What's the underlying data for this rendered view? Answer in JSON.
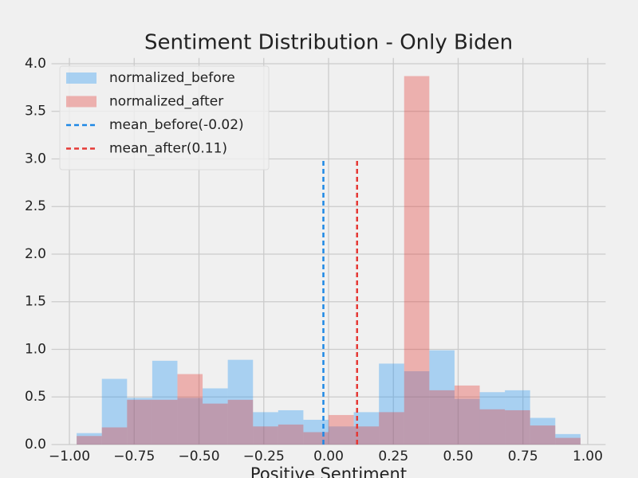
{
  "chart_data": {
    "type": "histogram",
    "title": "Sentiment Distribution - Only Biden",
    "xlabel": "Positive Sentiment",
    "bins": [
      -0.972,
      -0.8748,
      -0.7776,
      -0.6804,
      -0.5832,
      -0.486,
      -0.3888,
      -0.2916,
      -0.1944,
      -0.0972,
      0,
      0.0972,
      0.1944,
      0.2916,
      0.3888,
      0.486,
      0.5832,
      0.6804,
      0.7776,
      0.8748,
      0.972
    ],
    "series": [
      {
        "name": "normalized_before",
        "color": "#2196f3",
        "values": [
          0.12,
          0.69,
          0.49,
          0.88,
          0.49,
          0.59,
          0.89,
          0.34,
          0.36,
          0.26,
          0.19,
          0.34,
          0.85,
          0.77,
          0.99,
          0.48,
          0.55,
          0.57,
          0.28,
          0.11
        ]
      },
      {
        "name": "normalized_after",
        "color": "#e53935",
        "values": [
          0.09,
          0.18,
          0.47,
          0.47,
          0.74,
          0.43,
          0.47,
          0.19,
          0.21,
          0.13,
          0.31,
          0.19,
          0.34,
          3.87,
          0.57,
          0.62,
          0.37,
          0.36,
          0.2,
          0.07
        ]
      }
    ],
    "lines": [
      {
        "name": "mean_before(-0.02)",
        "color": "#1e88e5",
        "x": -0.02,
        "ymin": 0,
        "ymax": 3
      },
      {
        "name": "mean_after(0.11)",
        "color": "#e53935",
        "x": 0.11,
        "ymin": 0,
        "ymax": 3
      }
    ],
    "xlim": [
      -1.069,
      1.069
    ],
    "ylim": [
      0,
      4.06
    ],
    "xticks": [
      {
        "value": -1,
        "label": "−1.00"
      },
      {
        "value": -0.75,
        "label": "−0.75"
      },
      {
        "value": -0.5,
        "label": "−0.50"
      },
      {
        "value": -0.25,
        "label": "−0.25"
      },
      {
        "value": 0,
        "label": "0.00"
      },
      {
        "value": 0.25,
        "label": "0.25"
      },
      {
        "value": 0.5,
        "label": "0.50"
      },
      {
        "value": 0.75,
        "label": "0.75"
      },
      {
        "value": 1,
        "label": "1.00"
      }
    ],
    "yticks": [
      {
        "value": 0,
        "label": "0.0"
      },
      {
        "value": 0.5,
        "label": "0.5"
      },
      {
        "value": 1,
        "label": "1.0"
      },
      {
        "value": 1.5,
        "label": "1.5"
      },
      {
        "value": 2,
        "label": "2.0"
      },
      {
        "value": 2.5,
        "label": "2.5"
      },
      {
        "value": 3,
        "label": "3.0"
      },
      {
        "value": 3.5,
        "label": "3.5"
      },
      {
        "value": 4,
        "label": "4.0"
      }
    ],
    "grid": true,
    "legend": "upper left"
  }
}
